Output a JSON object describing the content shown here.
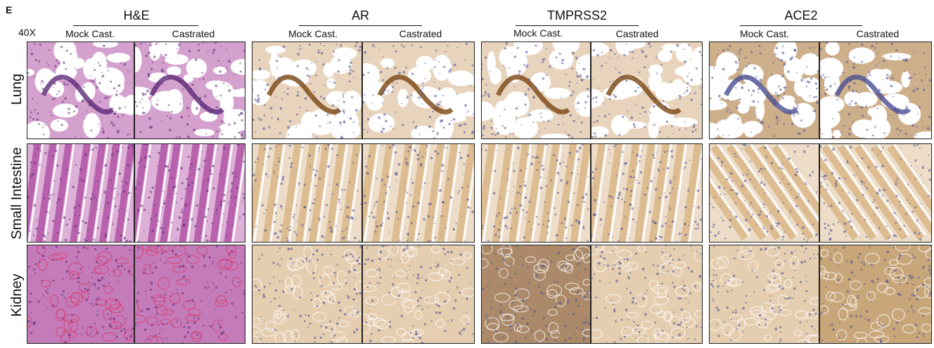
{
  "panel_letter": "E",
  "magnification": "40X",
  "stains": [
    {
      "name": "H&E"
    },
    {
      "name": "AR"
    },
    {
      "name": "TMPRSS2"
    },
    {
      "name": "ACE2"
    }
  ],
  "conditions": [
    "Mock Cast.",
    "Castrated"
  ],
  "tissues": [
    "Lung",
    "Small Intestine",
    "Kidney"
  ],
  "palette": {
    "he_bg": "#f3dff0",
    "he_nuc": "#5b2a78",
    "he_tissue": "#b45aa8",
    "he_red": "#d83a6a",
    "ihc_bg": "#f7f1ea",
    "ihc_brown": "#a9742f",
    "ihc_dark": "#7a4512",
    "ihc_blue": "#4b4f93",
    "ihc_tan": "#d9b889"
  }
}
